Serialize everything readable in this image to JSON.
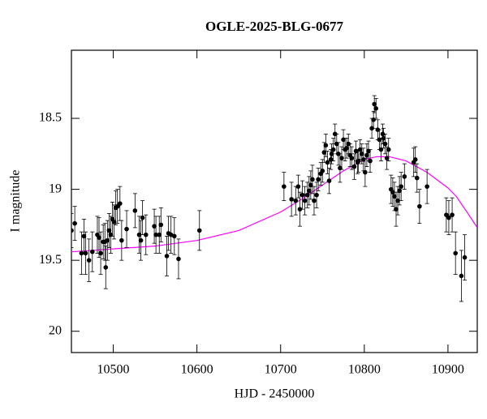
{
  "chart_data": {
    "type": "scatter_errorbar",
    "title": "OGLE-2025-BLG-0677",
    "xlabel": "HJD - 2450000",
    "ylabel": "I magnitude",
    "xlim": [
      10450,
      10935
    ],
    "ylim": [
      18.02,
      20.15
    ],
    "invert_y": true,
    "xticks": [
      10500,
      10600,
      10700,
      10800,
      10900
    ],
    "yticks": [
      18.5,
      19,
      19.5,
      20
    ],
    "color": "#000000",
    "x": [
      10450,
      10454,
      10462,
      10465,
      10467,
      10471,
      10475,
      10481,
      10483,
      10485,
      10488,
      10490,
      10491,
      10493,
      10495,
      10497,
      10499,
      10501,
      10503,
      10505,
      10508,
      10510,
      10516,
      10526,
      10531,
      10533,
      10535,
      10539,
      10549,
      10551,
      10555,
      10557,
      10564,
      10566,
      10569,
      10573,
      10578,
      10603,
      10704,
      10713,
      10718,
      10721,
      10723,
      10726,
      10729,
      10732,
      10734,
      10736,
      10738,
      10740,
      10743,
      10745,
      10748,
      10750,
      10752,
      10754,
      10756,
      10758,
      10760,
      10761,
      10763,
      10765,
      10767,
      10769,
      10771,
      10773,
      10775,
      10777,
      10779,
      10781,
      10783,
      10785,
      10788,
      10790,
      10792,
      10793,
      10795,
      10797,
      10799,
      10801,
      10803,
      10805,
      10807,
      10809,
      10811,
      10812,
      10814,
      10816,
      10818,
      10820,
      10822,
      10823,
      10825,
      10827,
      10829,
      10832,
      10834,
      10836,
      10838,
      10840,
      10842,
      10844,
      10848,
      10859,
      10861,
      10863,
      10866,
      10875,
      10898,
      10901,
      10905,
      10909,
      10916,
      10920
    ],
    "values": [
      19.29,
      19.24,
      19.45,
      19.33,
      19.45,
      19.5,
      19.44,
      19.32,
      19.34,
      19.45,
      19.37,
      19.37,
      19.55,
      19.36,
      19.29,
      19.32,
      19.21,
      19.23,
      19.13,
      19.12,
      19.1,
      19.36,
      19.28,
      19.15,
      19.32,
      19.36,
      19.2,
      19.32,
      19.26,
      19.32,
      19.32,
      19.25,
      19.47,
      19.31,
      19.32,
      19.33,
      19.49,
      19.29,
      18.98,
      19.07,
      19.08,
      18.98,
      19.14,
      19.04,
      19.08,
      19.04,
      19.01,
      18.97,
      18.93,
      19.08,
      19.04,
      18.93,
      18.89,
      18.87,
      18.74,
      18.69,
      18.81,
      18.94,
      18.79,
      18.75,
      18.72,
      18.61,
      18.68,
      18.75,
      18.85,
      18.78,
      18.65,
      18.72,
      18.71,
      18.68,
      18.76,
      18.78,
      18.84,
      18.73,
      18.81,
      18.8,
      18.72,
      18.75,
      18.79,
      18.88,
      18.76,
      18.73,
      18.8,
      18.57,
      18.51,
      18.4,
      18.43,
      18.58,
      18.65,
      18.72,
      18.61,
      18.64,
      18.68,
      18.78,
      18.72,
      19.0,
      19.02,
      19.05,
      19.14,
      19.08,
      19.01,
      18.98,
      18.91,
      18.81,
      18.79,
      18.92,
      19.12,
      18.98,
      19.18,
      19.2,
      19.18,
      19.45,
      19.61,
      19.48
    ],
    "errors": [
      0.12,
      0.12,
      0.15,
      0.12,
      0.15,
      0.15,
      0.14,
      0.13,
      0.14,
      0.15,
      0.12,
      0.13,
      0.15,
      0.14,
      0.12,
      0.13,
      0.12,
      0.12,
      0.12,
      0.12,
      0.12,
      0.14,
      0.13,
      0.12,
      0.13,
      0.14,
      0.12,
      0.14,
      0.12,
      0.13,
      0.13,
      0.12,
      0.14,
      0.12,
      0.13,
      0.13,
      0.14,
      0.14,
      0.1,
      0.12,
      0.1,
      0.08,
      0.12,
      0.1,
      0.1,
      0.09,
      0.1,
      0.1,
      0.1,
      0.1,
      0.09,
      0.08,
      0.08,
      0.08,
      0.07,
      0.08,
      0.08,
      0.09,
      0.07,
      0.07,
      0.08,
      0.07,
      0.07,
      0.08,
      0.1,
      0.08,
      0.07,
      0.08,
      0.07,
      0.07,
      0.08,
      0.08,
      0.09,
      0.07,
      0.08,
      0.08,
      0.07,
      0.07,
      0.08,
      0.1,
      0.08,
      0.07,
      0.08,
      0.07,
      0.06,
      0.06,
      0.07,
      0.07,
      0.07,
      0.08,
      0.07,
      0.07,
      0.07,
      0.08,
      0.08,
      0.1,
      0.1,
      0.1,
      0.12,
      0.1,
      0.1,
      0.1,
      0.09,
      0.1,
      0.09,
      0.1,
      0.12,
      0.12,
      0.12,
      0.12,
      0.12,
      0.15,
      0.18,
      0.16
    ],
    "model": {
      "color": "#ff00ff",
      "x": [
        10450,
        10500,
        10550,
        10600,
        10650,
        10700,
        10725,
        10750,
        10775,
        10800,
        10815,
        10830,
        10850,
        10875,
        10900,
        10910,
        10925,
        10935
      ],
      "values": [
        19.44,
        19.42,
        19.4,
        19.36,
        19.29,
        19.16,
        19.07,
        18.97,
        18.87,
        18.79,
        18.77,
        18.77,
        18.8,
        18.88,
        18.99,
        19.05,
        19.18,
        19.27
      ]
    }
  }
}
